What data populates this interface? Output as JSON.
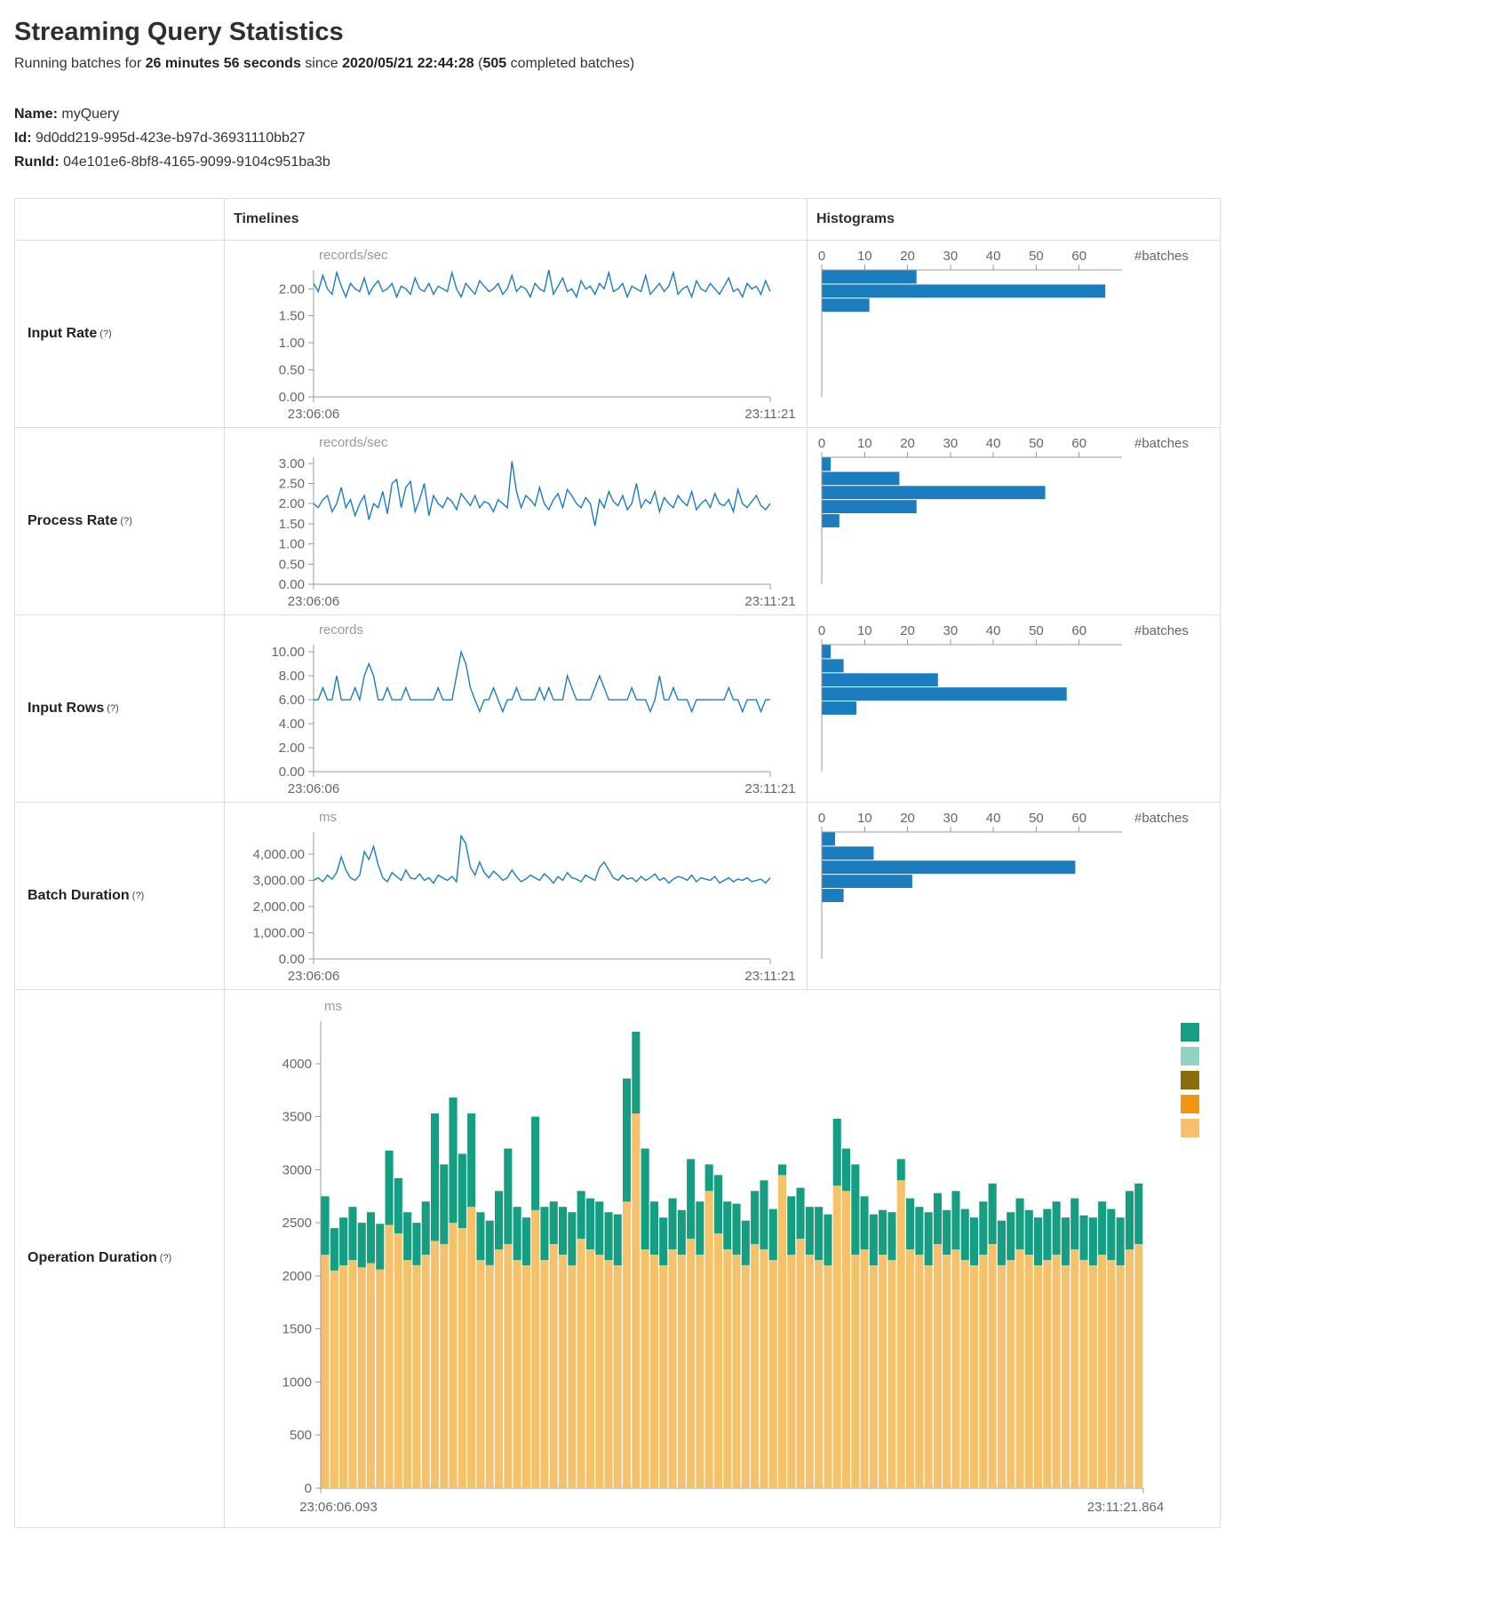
{
  "page": {
    "title": "Streaming Query Statistics",
    "running_line": {
      "prefix": "Running batches for ",
      "duration": "26 minutes 56 seconds",
      "since": " since ",
      "timestamp": "2020/05/21 22:44:28",
      "open": " (",
      "batch_count": "505",
      "suffix": " completed batches)"
    },
    "name_label": "Name:",
    "name_value": "myQuery",
    "id_label": "Id:",
    "id_value": "9d0dd219-995d-423e-b97d-36931110bb27",
    "runid_label": "RunId:",
    "runid_value": "04e101e6-8bf8-4165-9099-9104c951ba3b"
  },
  "table": {
    "col_timelines": "Timelines",
    "col_histograms": "Histograms",
    "rows": [
      {
        "label": "Input Rate",
        "hint": "(?)"
      },
      {
        "label": "Process Rate",
        "hint": "(?)"
      },
      {
        "label": "Input Rows",
        "hint": "(?)"
      },
      {
        "label": "Batch Duration",
        "hint": "(?)"
      },
      {
        "label": "Operation Duration",
        "hint": "(?)"
      }
    ]
  },
  "colors": {
    "accent_blue": "#1b7dbd",
    "stack_bottom_tan": "#f5c26b",
    "stack_top_green": "#169e82",
    "border": "#dddddd",
    "axis": "#999999",
    "axis_text": "#666666"
  },
  "chart_data": [
    {
      "type": "line",
      "name": "input-rate-timeline",
      "unit": "records/sec",
      "x_start": "23:06:06",
      "x_end": "23:11:21",
      "ylim": [
        0,
        2.35
      ],
      "yticks": [
        0,
        0.5,
        1,
        1.5,
        2
      ],
      "ytick_labels": [
        "0.00",
        "0.50",
        "1.00",
        "1.50",
        "2.00"
      ],
      "color": "#1b7dbd",
      "values": [
        2.1,
        1.95,
        2.25,
        2.0,
        1.9,
        2.3,
        2.05,
        1.85,
        2.1,
        2.0,
        1.95,
        2.2,
        1.9,
        2.05,
        2.15,
        1.95,
        2.0,
        2.1,
        1.85,
        2.05,
        2.0,
        1.9,
        2.2,
        2.0,
        1.95,
        2.1,
        1.9,
        2.05,
        2.0,
        1.95,
        2.3,
        2.0,
        1.85,
        2.1,
        2.0,
        1.9,
        2.15,
        2.05,
        1.95,
        2.0,
        2.1,
        1.9,
        2.0,
        2.25,
        1.95,
        2.05,
        2.0,
        1.85,
        2.1,
        2.0,
        1.95,
        2.35,
        1.9,
        2.05,
        2.2,
        1.95,
        2.0,
        1.85,
        2.15,
        2.0,
        2.05,
        1.9,
        2.1,
        2.0,
        2.3,
        1.95,
        2.0,
        2.1,
        1.85,
        2.05,
        2.0,
        1.95,
        2.25,
        1.9,
        2.0,
        2.1,
        1.95,
        2.05,
        2.3,
        1.9,
        2.0,
        2.05,
        1.85,
        2.15,
        2.0,
        1.95,
        2.1,
        2.0,
        1.9,
        2.05,
        2.2,
        1.95,
        2.0,
        1.85,
        2.1,
        2.0,
        2.05,
        1.9,
        2.15,
        1.95
      ]
    },
    {
      "type": "bar",
      "name": "input-rate-histogram",
      "xlabel": "#batches",
      "xlim": [
        0,
        70
      ],
      "xticks": [
        0,
        10,
        20,
        30,
        40,
        50,
        60
      ],
      "color": "#1b7dbd",
      "bins": [
        22,
        66,
        11,
        0,
        0,
        0,
        0,
        0,
        0
      ]
    },
    {
      "type": "line",
      "name": "process-rate-timeline",
      "unit": "records/sec",
      "x_start": "23:06:06",
      "x_end": "23:11:21",
      "ylim": [
        0,
        3.15
      ],
      "yticks": [
        0,
        0.5,
        1,
        1.5,
        2,
        2.5,
        3
      ],
      "ytick_labels": [
        "0.00",
        "0.50",
        "1.00",
        "1.50",
        "2.00",
        "2.50",
        "3.00"
      ],
      "color": "#1b7dbd",
      "values": [
        2.0,
        1.9,
        2.1,
        2.2,
        1.8,
        2.0,
        2.4,
        1.9,
        2.1,
        1.7,
        2.0,
        2.2,
        1.6,
        2.0,
        1.9,
        2.3,
        1.75,
        2.5,
        2.6,
        1.9,
        2.4,
        2.55,
        1.8,
        2.1,
        2.5,
        1.7,
        2.2,
        2.0,
        1.9,
        2.15,
        2.05,
        1.85,
        2.25,
        2.1,
        1.95,
        2.2,
        1.9,
        2.05,
        2.0,
        1.8,
        2.1,
        2.0,
        1.9,
        3.05,
        2.3,
        1.9,
        2.2,
        2.1,
        1.95,
        2.4,
        2.0,
        1.85,
        2.1,
        2.25,
        1.9,
        2.35,
        2.2,
        2.0,
        1.9,
        2.15,
        2.0,
        1.45,
        2.1,
        1.9,
        2.3,
        2.05,
        1.95,
        2.2,
        1.85,
        2.0,
        2.5,
        1.9,
        2.1,
        2.0,
        2.3,
        1.8,
        2.15,
        2.0,
        1.9,
        2.2,
        2.05,
        1.95,
        2.3,
        1.85,
        2.0,
        2.1,
        1.9,
        2.25,
        2.0,
        1.95,
        2.1,
        1.8,
        2.35,
        2.0,
        1.9,
        2.05,
        2.2,
        1.95,
        1.85,
        2.0
      ]
    },
    {
      "type": "bar",
      "name": "process-rate-histogram",
      "xlabel": "#batches",
      "xlim": [
        0,
        70
      ],
      "xticks": [
        0,
        10,
        20,
        30,
        40,
        50,
        60
      ],
      "color": "#1b7dbd",
      "bins": [
        2,
        18,
        52,
        22,
        4,
        0,
        0,
        0,
        0
      ]
    },
    {
      "type": "line",
      "name": "input-rows-timeline",
      "unit": "records",
      "x_start": "23:06:06",
      "x_end": "23:11:21",
      "ylim": [
        0,
        10.6
      ],
      "yticks": [
        0,
        2,
        4,
        6,
        8,
        10
      ],
      "ytick_labels": [
        "0.00",
        "2.00",
        "4.00",
        "6.00",
        "8.00",
        "10.00"
      ],
      "color": "#1b7dbd",
      "values": [
        6,
        6,
        7,
        6,
        6,
        8,
        6,
        6,
        6,
        7,
        6,
        8,
        9,
        8,
        6,
        6,
        7,
        6,
        6,
        6,
        7,
        6,
        6,
        6,
        6,
        6,
        6,
        7,
        6,
        6,
        6,
        8,
        10,
        9,
        7,
        6,
        5,
        6,
        6,
        7,
        6,
        5,
        6,
        6,
        7,
        6,
        6,
        6,
        6,
        7,
        6,
        7,
        6,
        6,
        6,
        8,
        7,
        6,
        6,
        6,
        6,
        7,
        8,
        7,
        6,
        6,
        6,
        6,
        6,
        7,
        6,
        6,
        6,
        5,
        6,
        8,
        6,
        6,
        7,
        6,
        6,
        6,
        5,
        6,
        6,
        6,
        6,
        6,
        6,
        6,
        7,
        6,
        6,
        5,
        6,
        6,
        6,
        5,
        6,
        6
      ]
    },
    {
      "type": "bar",
      "name": "input-rows-histogram",
      "xlabel": "#batches",
      "xlim": [
        0,
        70
      ],
      "xticks": [
        0,
        10,
        20,
        30,
        40,
        50,
        60
      ],
      "color": "#1b7dbd",
      "bins": [
        2,
        5,
        27,
        57,
        8,
        0,
        0,
        0,
        0
      ]
    },
    {
      "type": "line",
      "name": "batch-duration-timeline",
      "unit": "ms",
      "x_start": "23:06:06",
      "x_end": "23:11:21",
      "ylim": [
        0,
        4850
      ],
      "yticks": [
        0,
        1000,
        2000,
        3000,
        4000
      ],
      "ytick_labels": [
        "0.00",
        "1,000.00",
        "2,000.00",
        "3,000.00",
        "4,000.00"
      ],
      "color": "#1b7dbd",
      "values": [
        3000,
        3100,
        2950,
        3200,
        3050,
        3300,
        3900,
        3400,
        3100,
        3000,
        3200,
        4100,
        3800,
        4300,
        3600,
        3100,
        2950,
        3300,
        3150,
        3000,
        3400,
        3100,
        3050,
        3250,
        3000,
        3100,
        2900,
        3200,
        3100,
        3000,
        3150,
        2950,
        4700,
        4400,
        3500,
        3200,
        3700,
        3300,
        3100,
        3350,
        3200,
        3000,
        3100,
        3400,
        3150,
        2950,
        3050,
        3200,
        3100,
        3000,
        3250,
        3100,
        2900,
        3150,
        3000,
        3300,
        3100,
        3050,
        2950,
        3200,
        3100,
        3000,
        3500,
        3700,
        3400,
        3100,
        3000,
        3200,
        3050,
        3100,
        2950,
        3150,
        3000,
        3100,
        3250,
        3000,
        3100,
        2900,
        3050,
        3150,
        3100,
        3000,
        3200,
        2950,
        3100,
        3050,
        3000,
        3150,
        2900,
        3000,
        3100,
        2950,
        3050,
        3000,
        3100,
        2950,
        3000,
        3050,
        2900,
        3100
      ]
    },
    {
      "type": "bar",
      "name": "batch-duration-histogram",
      "xlabel": "#batches",
      "xlim": [
        0,
        70
      ],
      "xticks": [
        0,
        10,
        20,
        30,
        40,
        50,
        60
      ],
      "color": "#1b7dbd",
      "bins": [
        3,
        12,
        59,
        21,
        5,
        0,
        0,
        0,
        0
      ]
    },
    {
      "type": "stacked-bar",
      "name": "operation-duration",
      "unit": "ms",
      "x_start": "23:06:06.093",
      "x_end": "23:11:21.864",
      "ylim": [
        0,
        4400
      ],
      "yticks": [
        0,
        500,
        1000,
        1500,
        2000,
        2500,
        3000,
        3500,
        4000
      ],
      "ytick_labels": [
        "0",
        "500",
        "1000",
        "1500",
        "2000",
        "2500",
        "3000",
        "3500",
        "4000"
      ],
      "legend_colors": [
        "#169e82",
        "#8fd3c0",
        "#8a6d0b",
        "#f0960f",
        "#f5c26b"
      ],
      "series": [
        {
          "name": "bottom",
          "color": "#f5c26b",
          "values": [
            2200,
            2050,
            2100,
            2150,
            2080,
            2120,
            2060,
            2480,
            2400,
            2150,
            2100,
            2200,
            2330,
            2300,
            2500,
            2450,
            2650,
            2150,
            2100,
            2250,
            2300,
            2150,
            2100,
            2620,
            2150,
            2300,
            2200,
            2100,
            2350,
            2250,
            2200,
            2150,
            2100,
            2700,
            3530,
            2250,
            2200,
            2100,
            2250,
            2200,
            2350,
            2200,
            2800,
            2400,
            2250,
            2200,
            2100,
            2300,
            2250,
            2150,
            2950,
            2200,
            2350,
            2200,
            2150,
            2100,
            2850,
            2800,
            2200,
            2250,
            2100,
            2200,
            2150,
            2900,
            2250,
            2200,
            2100,
            2300,
            2200,
            2250,
            2150,
            2100,
            2200,
            2300,
            2100,
            2150,
            2250,
            2200,
            2100,
            2150,
            2200,
            2100,
            2250,
            2150,
            2100,
            2200,
            2150,
            2100,
            2250,
            2300
          ]
        },
        {
          "name": "top",
          "color": "#169e82",
          "values": [
            550,
            400,
            450,
            500,
            420,
            480,
            430,
            700,
            520,
            450,
            400,
            500,
            1200,
            750,
            1180,
            700,
            880,
            450,
            420,
            550,
            900,
            500,
            450,
            880,
            500,
            400,
            450,
            500,
            450,
            480,
            500,
            450,
            480,
            1160,
            770,
            950,
            500,
            450,
            480,
            420,
            750,
            500,
            250,
            550,
            450,
            480,
            420,
            500,
            650,
            480,
            100,
            550,
            480,
            450,
            500,
            480,
            630,
            400,
            850,
            500,
            480,
            420,
            450,
            200,
            480,
            450,
            500,
            480,
            420,
            550,
            480,
            450,
            500,
            570,
            420,
            450,
            480,
            420,
            450,
            480,
            500,
            450,
            480,
            420,
            450,
            500,
            480,
            450,
            550,
            570
          ]
        }
      ]
    }
  ]
}
